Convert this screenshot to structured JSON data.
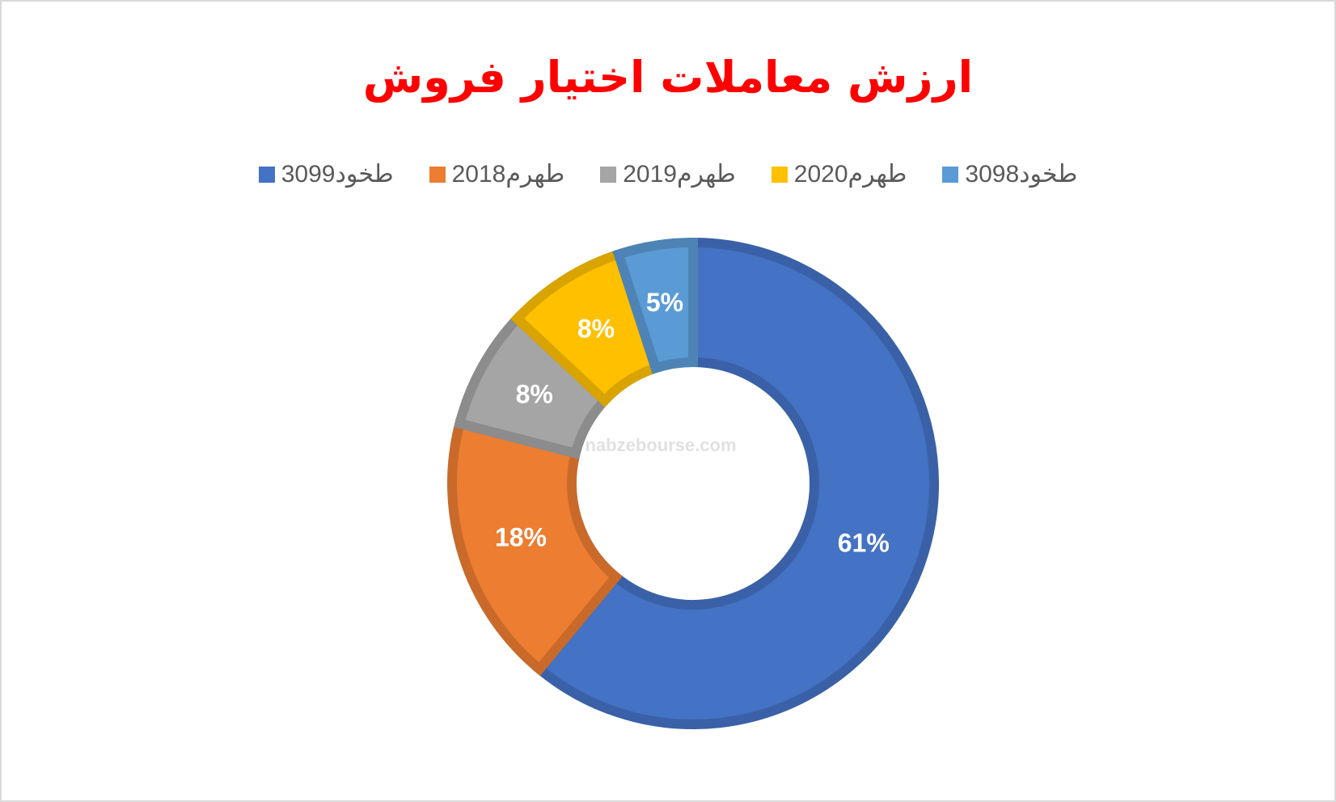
{
  "chart_data": {
    "type": "donut",
    "title": "ارزش معاملات اختیار فروش",
    "categories": [
      "طخود3099",
      "طهرم2018",
      "طهرم2019",
      "طهرم2020",
      "طخود3098"
    ],
    "values": [
      61,
      18,
      8,
      8,
      5
    ],
    "value_labels": [
      "61%",
      "18%",
      "8%",
      "8%",
      "5%"
    ],
    "colors": [
      "#4472c4",
      "#ed7d31",
      "#a5a5a5",
      "#ffc000",
      "#5b9bd5"
    ],
    "watermark": "nabzebourse.com",
    "legend": "top"
  }
}
